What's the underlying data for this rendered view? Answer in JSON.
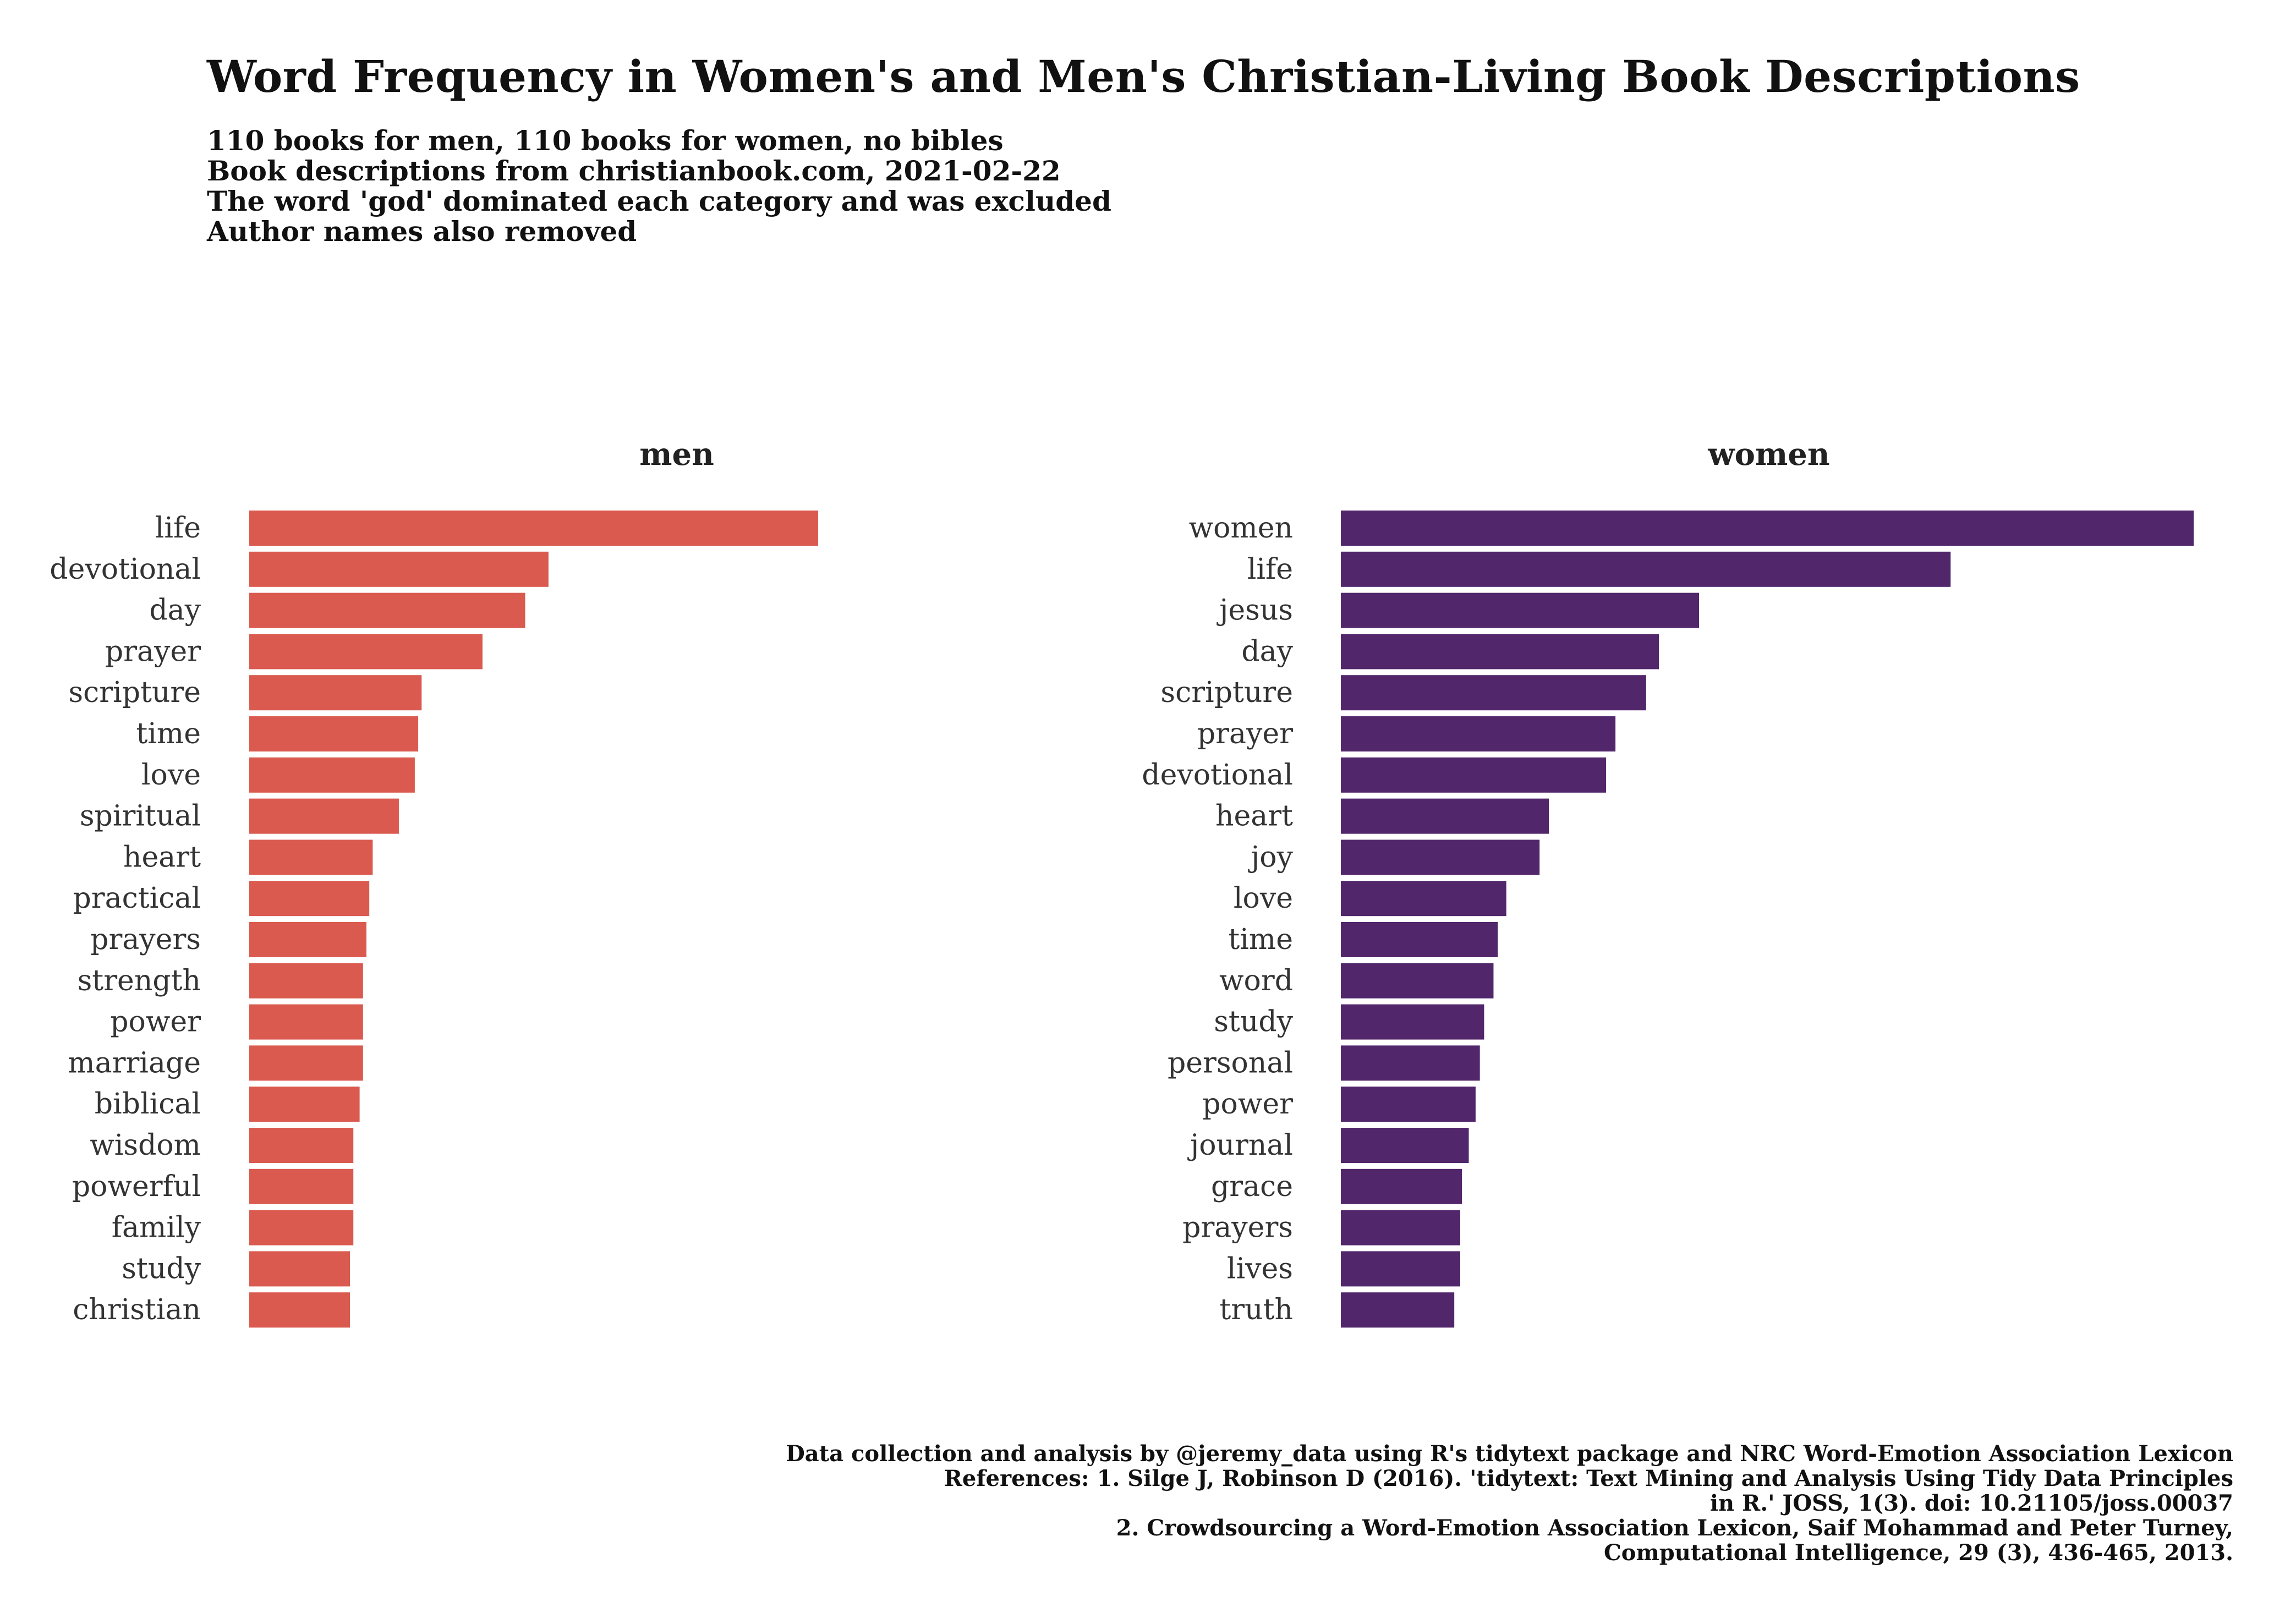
{
  "title": "Word Frequency in Women's and Men's Christian-Living Book Descriptions",
  "subtitle": [
    "110 books for men, 110 books for women, no bibles",
    "Book descriptions from christianbook.com, 2021-02-22",
    "The word 'god' dominated each category and was excluded",
    "Author names also removed"
  ],
  "caption": [
    "Data collection and analysis by @jeremy_data using R's tidytext package and NRC Word-Emotion Association Lexicon",
    "References: 1. Silge J, Robinson D (2016). 'tidytext: Text Mining and Analysis Using Tidy Data Principles",
    "in R.' JOSS, 1(3). doi: 10.21105/joss.00037",
    "2. Crowdsourcing a Word-Emotion Association Lexicon, Saif Mohammad and Peter Turney,",
    "Computational Intelligence, 29 (3), 436-465, 2013."
  ],
  "chart_data": [
    {
      "type": "bar",
      "orientation": "horizontal",
      "facet": "men",
      "color": "#DA5A4F",
      "categories": [
        "life",
        "devotional",
        "day",
        "prayer",
        "scripture",
        "time",
        "love",
        "spiritual",
        "heart",
        "practical",
        "prayers",
        "strength",
        "power",
        "marriage",
        "biblical",
        "wisdom",
        "powerful",
        "family",
        "study",
        "christian"
      ],
      "values": [
        100,
        52.6,
        48.5,
        41,
        30.3,
        29.7,
        29.1,
        26.3,
        21.7,
        21.1,
        20.6,
        20,
        20,
        20,
        19.4,
        18.3,
        18.3,
        18.3,
        17.7,
        17.7
      ],
      "xlim": [
        0,
        100
      ],
      "grid": false
    },
    {
      "type": "bar",
      "orientation": "horizontal",
      "facet": "women",
      "color": "#52266B",
      "categories": [
        "women",
        "life",
        "jesus",
        "day",
        "scripture",
        "prayer",
        "devotional",
        "heart",
        "joy",
        "love",
        "time",
        "word",
        "study",
        "personal",
        "power",
        "journal",
        "grace",
        "prayers",
        "lives",
        "truth"
      ],
      "values": [
        100,
        71.5,
        42,
        37.3,
        35.8,
        32.2,
        31.1,
        24.4,
        23.3,
        19.4,
        18.4,
        17.9,
        16.8,
        16.3,
        15.8,
        15,
        14.2,
        14,
        14,
        13.3
      ],
      "xlim": [
        0,
        100
      ],
      "grid": false
    }
  ]
}
